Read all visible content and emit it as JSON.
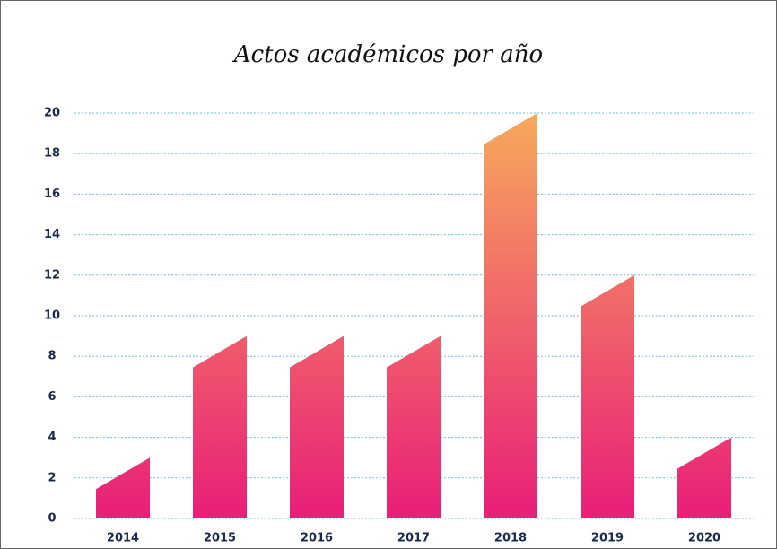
{
  "chart_data": {
    "type": "bar",
    "title": "Actos académicos por año",
    "categories": [
      "2014",
      "2015",
      "2016",
      "2017",
      "2018",
      "2019",
      "2020"
    ],
    "values": [
      3,
      9,
      9,
      9,
      20,
      12,
      4
    ],
    "color": [
      "#e91e78",
      "#f7a95c"
    ],
    "ylim": [
      0,
      20
    ],
    "yticks": [
      0,
      2,
      4,
      6,
      8,
      10,
      12,
      14,
      16,
      18,
      20
    ],
    "grid": true
  }
}
